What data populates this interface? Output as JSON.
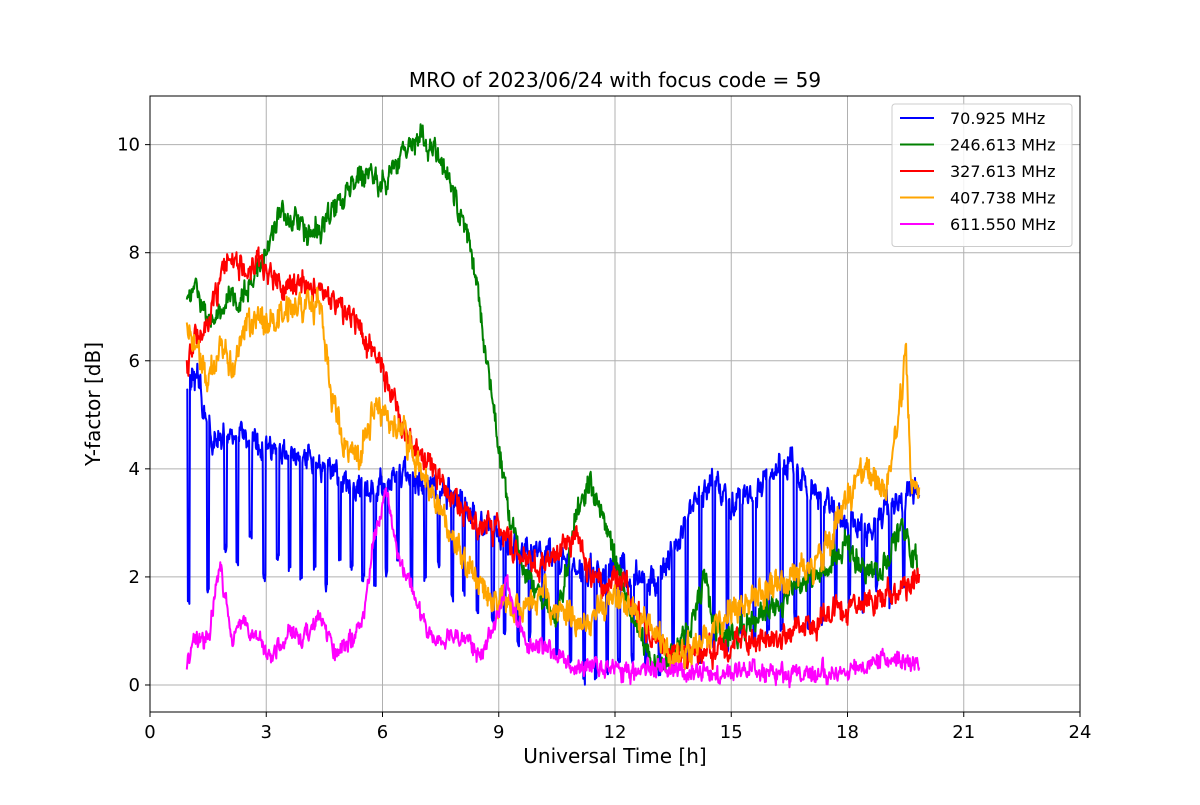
{
  "chart_data": {
    "type": "line",
    "title": "MRO of 2023/06/24 with focus code = 59",
    "xlabel": "Universal Time [h]",
    "ylabel": "Y-factor [dB]",
    "xlim": [
      0,
      24
    ],
    "ylim": [
      -0.5,
      10.9
    ],
    "xticks": [
      0,
      3,
      6,
      9,
      12,
      15,
      18,
      21,
      24
    ],
    "yticks": [
      0,
      2,
      4,
      6,
      8,
      10
    ],
    "grid": true,
    "legend_position": "top-right",
    "series": [
      {
        "name": " 70.925 MHz",
        "color": "#0000ff",
        "baseline": [
          [
            0.95,
            5.4
          ],
          [
            1.2,
            5.7
          ],
          [
            1.6,
            4.5
          ],
          [
            2.0,
            4.6
          ],
          [
            2.5,
            4.5
          ],
          [
            3.0,
            4.5
          ],
          [
            3.5,
            4.3
          ],
          [
            4.0,
            4.2
          ],
          [
            4.5,
            4.0
          ],
          [
            5.0,
            3.8
          ],
          [
            5.5,
            3.6
          ],
          [
            6.0,
            3.7
          ],
          [
            6.5,
            3.9
          ],
          [
            7.0,
            3.8
          ],
          [
            7.5,
            3.6
          ],
          [
            8.0,
            3.4
          ],
          [
            8.5,
            3.0
          ],
          [
            9.0,
            2.8
          ],
          [
            9.5,
            2.5
          ],
          [
            10.0,
            2.4
          ],
          [
            10.5,
            2.3
          ],
          [
            11.0,
            2.2
          ],
          [
            11.5,
            2.0
          ],
          [
            12.0,
            2.1
          ],
          [
            12.5,
            2.0
          ],
          [
            13.0,
            1.9
          ],
          [
            13.5,
            2.5
          ],
          [
            14.0,
            3.3
          ],
          [
            14.5,
            3.8
          ],
          [
            15.0,
            3.4
          ],
          [
            15.5,
            3.5
          ],
          [
            16.0,
            3.9
          ],
          [
            16.5,
            4.1
          ],
          [
            17.0,
            3.6
          ],
          [
            17.5,
            3.3
          ],
          [
            18.0,
            3.0
          ],
          [
            18.5,
            2.9
          ],
          [
            19.0,
            3.2
          ],
          [
            19.5,
            3.5
          ],
          [
            19.85,
            3.6
          ]
        ],
        "dips": [
          [
            1.0,
            1.6
          ],
          [
            1.5,
            1.8
          ],
          [
            1.95,
            2.5
          ],
          [
            2.25,
            2.2
          ],
          [
            2.6,
            2.8
          ],
          [
            2.95,
            2.0
          ],
          [
            3.3,
            2.4
          ],
          [
            3.6,
            2.2
          ],
          [
            3.9,
            2.0
          ],
          [
            4.25,
            2.2
          ],
          [
            4.55,
            1.8
          ],
          [
            4.9,
            2.4
          ],
          [
            5.2,
            2.2
          ],
          [
            5.5,
            2.0
          ],
          [
            5.8,
            1.9
          ],
          [
            6.1,
            2.1
          ],
          [
            6.4,
            2.4
          ],
          [
            6.75,
            1.8
          ],
          [
            7.1,
            2.0
          ],
          [
            7.45,
            2.2
          ],
          [
            7.8,
            1.6
          ],
          [
            8.1,
            1.7
          ],
          [
            8.45,
            1.4
          ],
          [
            8.85,
            1.2
          ],
          [
            9.15,
            1.0
          ],
          [
            9.5,
            0.8
          ],
          [
            9.8,
            0.9
          ],
          [
            10.15,
            0.7
          ],
          [
            10.5,
            0.6
          ],
          [
            10.85,
            0.5
          ],
          [
            11.2,
            0.1
          ],
          [
            11.5,
            0.2
          ],
          [
            11.8,
            0.3
          ],
          [
            12.1,
            0.4
          ],
          [
            12.45,
            0.5
          ],
          [
            12.8,
            0.3
          ],
          [
            13.15,
            0.2
          ],
          [
            13.5,
            0.3
          ],
          [
            13.85,
            0.4
          ],
          [
            14.2,
            0.5
          ],
          [
            14.55,
            0.7
          ],
          [
            14.9,
            0.6
          ],
          [
            15.25,
            1.0
          ],
          [
            15.6,
            0.9
          ],
          [
            15.95,
            1.0
          ],
          [
            16.3,
            1.1
          ],
          [
            16.65,
            1.3
          ],
          [
            17.0,
            1.0
          ],
          [
            17.35,
            1.2
          ],
          [
            17.7,
            1.5
          ],
          [
            18.05,
            1.6
          ],
          [
            18.4,
            1.4
          ],
          [
            18.75,
            1.8
          ],
          [
            19.1,
            1.5
          ],
          [
            19.45,
            1.9
          ]
        ],
        "noise": 0.22,
        "zorder": 1
      },
      {
        "name": "246.613 MHz",
        "color": "#008000",
        "baseline": [
          [
            0.95,
            7.0
          ],
          [
            1.2,
            7.5
          ],
          [
            1.5,
            6.6
          ],
          [
            1.8,
            7.0
          ],
          [
            2.2,
            7.2
          ],
          [
            2.6,
            7.4
          ],
          [
            3.0,
            8.0
          ],
          [
            3.3,
            8.7
          ],
          [
            3.8,
            8.5
          ],
          [
            4.2,
            8.3
          ],
          [
            4.6,
            8.7
          ],
          [
            5.0,
            9.0
          ],
          [
            5.4,
            9.4
          ],
          [
            5.8,
            9.3
          ],
          [
            6.2,
            9.4
          ],
          [
            6.6,
            9.9
          ],
          [
            7.0,
            10.1
          ],
          [
            7.4,
            9.9
          ],
          [
            7.8,
            9.2
          ],
          [
            8.2,
            8.3
          ],
          [
            8.5,
            7.1
          ],
          [
            8.8,
            5.5
          ],
          [
            9.0,
            4.3
          ],
          [
            9.3,
            3.0
          ],
          [
            9.6,
            2.2
          ],
          [
            10.0,
            1.6
          ],
          [
            10.5,
            1.3
          ],
          [
            11.0,
            3.1
          ],
          [
            11.3,
            3.7
          ],
          [
            11.6,
            3.3
          ],
          [
            12.0,
            2.3
          ],
          [
            12.5,
            1.2
          ],
          [
            13.0,
            0.3
          ],
          [
            13.5,
            0.7
          ],
          [
            14.0,
            1.2
          ],
          [
            14.3,
            2.0
          ],
          [
            14.6,
            1.0
          ],
          [
            15.0,
            0.9
          ],
          [
            15.5,
            1.1
          ],
          [
            16.0,
            1.4
          ],
          [
            16.5,
            1.6
          ],
          [
            17.0,
            1.9
          ],
          [
            17.5,
            2.2
          ],
          [
            18.0,
            2.6
          ],
          [
            18.5,
            2.1
          ],
          [
            19.0,
            2.2
          ],
          [
            19.4,
            3.0
          ],
          [
            19.6,
            2.5
          ],
          [
            19.85,
            2.1
          ]
        ],
        "dips": [],
        "noise": 0.2,
        "zorder": 2
      },
      {
        "name": "327.613 MHz",
        "color": "#ff0000",
        "baseline": [
          [
            0.95,
            5.8
          ],
          [
            1.2,
            6.5
          ],
          [
            1.5,
            6.8
          ],
          [
            1.8,
            7.4
          ],
          [
            2.0,
            8.0
          ],
          [
            2.3,
            7.8
          ],
          [
            2.6,
            7.7
          ],
          [
            2.9,
            7.9
          ],
          [
            3.2,
            7.5
          ],
          [
            3.6,
            7.3
          ],
          [
            4.0,
            7.4
          ],
          [
            4.4,
            7.3
          ],
          [
            4.8,
            7.0
          ],
          [
            5.2,
            6.8
          ],
          [
            5.6,
            6.3
          ],
          [
            6.0,
            5.8
          ],
          [
            6.4,
            5.0
          ],
          [
            6.8,
            4.4
          ],
          [
            7.2,
            4.1
          ],
          [
            7.6,
            3.7
          ],
          [
            8.0,
            3.3
          ],
          [
            8.4,
            3.0
          ],
          [
            8.8,
            2.9
          ],
          [
            9.2,
            2.7
          ],
          [
            9.6,
            2.3
          ],
          [
            10.0,
            2.2
          ],
          [
            10.5,
            2.5
          ],
          [
            11.0,
            2.8
          ],
          [
            11.4,
            1.9
          ],
          [
            11.8,
            1.8
          ],
          [
            12.2,
            2.0
          ],
          [
            12.6,
            1.3
          ],
          [
            13.0,
            0.8
          ],
          [
            13.5,
            0.6
          ],
          [
            14.0,
            0.5
          ],
          [
            14.5,
            0.6
          ],
          [
            15.0,
            0.8
          ],
          [
            15.5,
            0.8
          ],
          [
            16.0,
            0.9
          ],
          [
            16.5,
            0.9
          ],
          [
            17.0,
            1.1
          ],
          [
            17.5,
            1.3
          ],
          [
            18.0,
            1.4
          ],
          [
            18.5,
            1.5
          ],
          [
            19.0,
            1.7
          ],
          [
            19.5,
            1.9
          ],
          [
            19.85,
            2.1
          ]
        ],
        "dips": [],
        "noise": 0.2,
        "zorder": 3
      },
      {
        "name": "407.738 MHz",
        "color": "#ffa500",
        "baseline": [
          [
            0.95,
            6.6
          ],
          [
            1.2,
            6.2
          ],
          [
            1.5,
            5.6
          ],
          [
            1.8,
            6.2
          ],
          [
            2.1,
            5.8
          ],
          [
            2.4,
            6.6
          ],
          [
            2.8,
            6.8
          ],
          [
            3.2,
            6.7
          ],
          [
            3.6,
            7.0
          ],
          [
            4.0,
            7.1
          ],
          [
            4.4,
            6.9
          ],
          [
            4.7,
            5.2
          ],
          [
            5.0,
            4.6
          ],
          [
            5.4,
            4.2
          ],
          [
            5.8,
            5.2
          ],
          [
            6.2,
            4.8
          ],
          [
            6.6,
            4.6
          ],
          [
            7.0,
            4.0
          ],
          [
            7.4,
            3.4
          ],
          [
            7.8,
            2.8
          ],
          [
            8.2,
            2.2
          ],
          [
            8.6,
            1.8
          ],
          [
            9.0,
            1.5
          ],
          [
            9.4,
            1.4
          ],
          [
            9.8,
            1.5
          ],
          [
            10.2,
            1.7
          ],
          [
            10.6,
            1.4
          ],
          [
            11.0,
            1.1
          ],
          [
            11.5,
            1.3
          ],
          [
            12.0,
            1.7
          ],
          [
            12.5,
            1.4
          ],
          [
            13.0,
            1.0
          ],
          [
            13.5,
            0.6
          ],
          [
            14.0,
            0.6
          ],
          [
            14.5,
            1.0
          ],
          [
            15.0,
            1.4
          ],
          [
            15.5,
            1.6
          ],
          [
            16.0,
            1.8
          ],
          [
            16.5,
            2.0
          ],
          [
            17.0,
            2.1
          ],
          [
            17.5,
            2.5
          ],
          [
            18.0,
            3.5
          ],
          [
            18.5,
            4.0
          ],
          [
            19.0,
            3.7
          ],
          [
            19.3,
            4.8
          ],
          [
            19.5,
            6.2
          ],
          [
            19.65,
            3.8
          ],
          [
            19.85,
            3.5
          ]
        ],
        "dips": [],
        "noise": 0.24,
        "zorder": 4
      },
      {
        "name": "611.550 MHz",
        "color": "#ff00ff",
        "baseline": [
          [
            0.95,
            0.4
          ],
          [
            1.2,
            0.9
          ],
          [
            1.5,
            0.8
          ],
          [
            1.8,
            2.3
          ],
          [
            2.1,
            0.9
          ],
          [
            2.4,
            1.2
          ],
          [
            2.8,
            0.8
          ],
          [
            3.2,
            0.6
          ],
          [
            3.6,
            0.9
          ],
          [
            4.0,
            0.9
          ],
          [
            4.4,
            1.3
          ],
          [
            4.8,
            0.6
          ],
          [
            5.2,
            0.8
          ],
          [
            5.5,
            1.3
          ],
          [
            5.8,
            2.8
          ],
          [
            6.1,
            3.6
          ],
          [
            6.4,
            2.4
          ],
          [
            6.7,
            1.8
          ],
          [
            7.0,
            1.2
          ],
          [
            7.4,
            0.8
          ],
          [
            7.8,
            0.9
          ],
          [
            8.2,
            0.7
          ],
          [
            8.6,
            0.6
          ],
          [
            9.0,
            1.4
          ],
          [
            9.2,
            2.0
          ],
          [
            9.5,
            1.0
          ],
          [
            9.9,
            0.7
          ],
          [
            10.4,
            0.6
          ],
          [
            10.8,
            0.4
          ],
          [
            11.2,
            0.4
          ],
          [
            11.6,
            0.3
          ],
          [
            12.0,
            0.3
          ],
          [
            12.5,
            0.3
          ],
          [
            13.0,
            0.3
          ],
          [
            13.5,
            0.3
          ],
          [
            14.0,
            0.2
          ],
          [
            14.5,
            0.2
          ],
          [
            15.0,
            0.3
          ],
          [
            15.5,
            0.3
          ],
          [
            16.0,
            0.2
          ],
          [
            16.5,
            0.2
          ],
          [
            17.0,
            0.2
          ],
          [
            17.5,
            0.2
          ],
          [
            18.0,
            0.3
          ],
          [
            18.4,
            0.4
          ],
          [
            18.7,
            0.5
          ],
          [
            19.0,
            0.5
          ],
          [
            19.4,
            0.4
          ],
          [
            19.85,
            0.4
          ]
        ],
        "dips": [],
        "noise": 0.15,
        "zorder": 5
      }
    ]
  }
}
